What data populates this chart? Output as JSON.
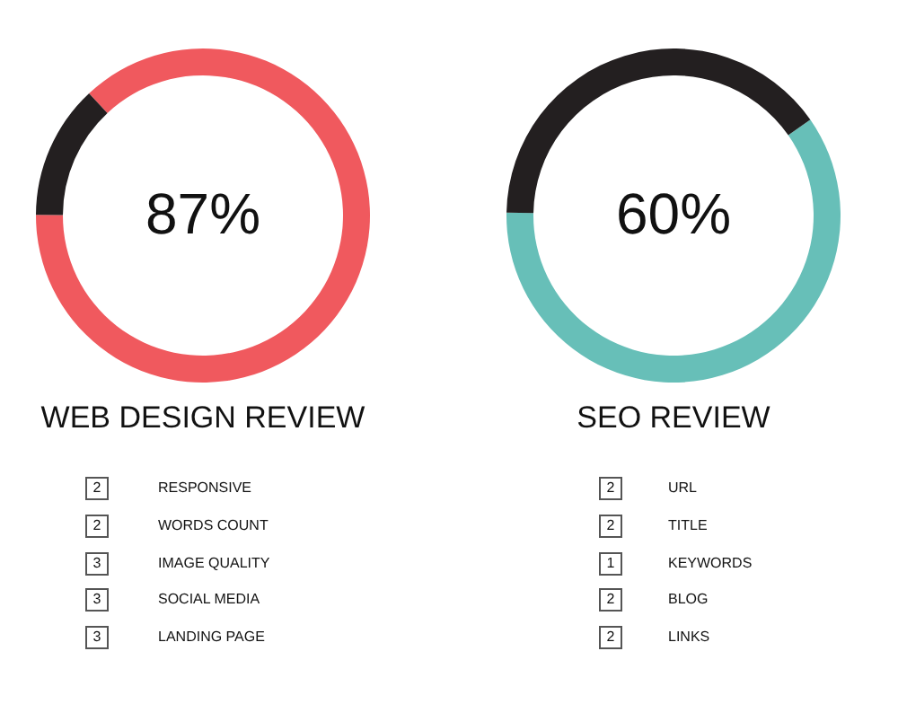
{
  "chart_data": [
    {
      "type": "donut",
      "title": "WEB DESIGN REVIEW",
      "categories": [
        null,
        null
      ],
      "values": [
        87,
        13
      ],
      "colors": [
        "#f0595e",
        "#231f20"
      ],
      "legend": false,
      "annotations": [
        "87%",
        "2",
        "RESPONSIVE",
        "2",
        "WORDS COUNT",
        "3",
        "IMAGE QUALITY",
        "3",
        "SOCIAL MEDIA",
        "3",
        "LANDING PAGE"
      ]
    },
    {
      "type": "donut",
      "title": "SEO REVIEW",
      "categories": [
        null,
        null
      ],
      "values": [
        60,
        40
      ],
      "colors": [
        "#67bfb8",
        "#231f20"
      ],
      "legend": false,
      "annotations": [
        "60%",
        "2",
        "URL",
        "2",
        "TITLE",
        "1",
        "KEYWORDS",
        "2",
        "BLOG",
        "2",
        "LINKS"
      ]
    }
  ]
}
